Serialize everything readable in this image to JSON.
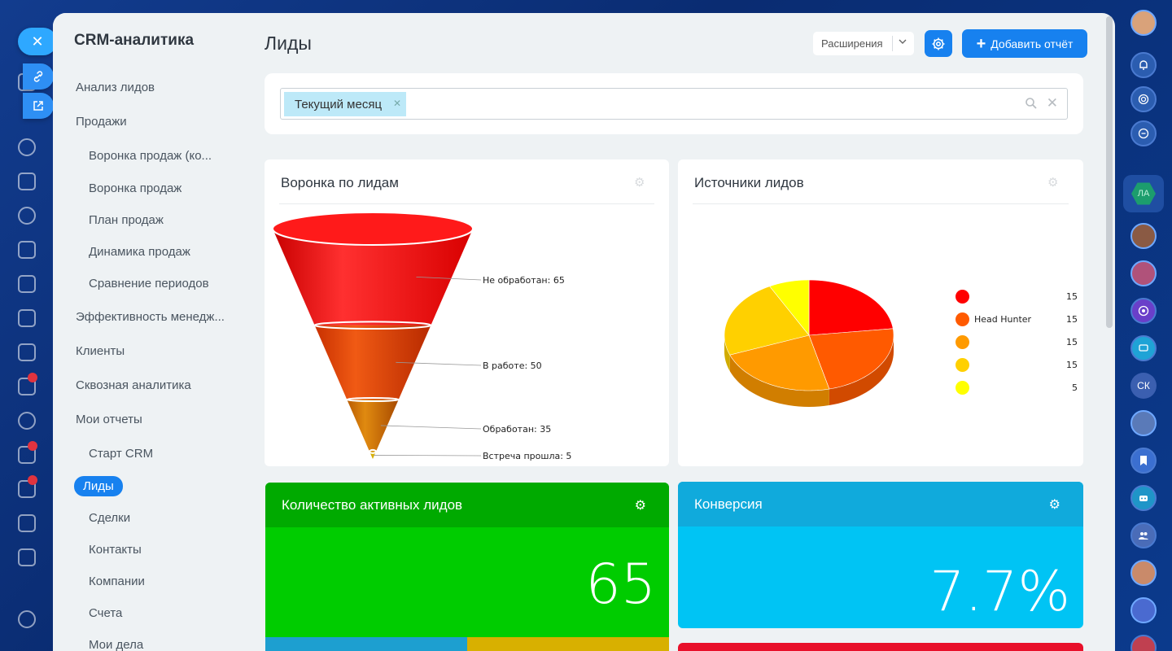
{
  "app": {
    "title": "CRM-аналитика"
  },
  "sidebar": {
    "items": [
      {
        "label": "Анализ лидов",
        "level": 0
      },
      {
        "label": "Продажи",
        "level": 0
      },
      {
        "label": "Воронка продаж (ко...",
        "level": 1
      },
      {
        "label": "Воронка продаж",
        "level": 1
      },
      {
        "label": "План продаж",
        "level": 1
      },
      {
        "label": "Динамика продаж",
        "level": 1
      },
      {
        "label": "Сравнение периодов",
        "level": 1
      },
      {
        "label": "Эффективность менедж...",
        "level": 0
      },
      {
        "label": "Клиенты",
        "level": 0
      },
      {
        "label": "Сквозная аналитика",
        "level": 0
      },
      {
        "label": "Мои отчеты",
        "level": 0
      },
      {
        "label": "Старт CRM",
        "level": 1
      },
      {
        "label": "Лиды",
        "level": 1,
        "active": true
      },
      {
        "label": "Сделки",
        "level": 1
      },
      {
        "label": "Контакты",
        "level": 1
      },
      {
        "label": "Компании",
        "level": 1
      },
      {
        "label": "Счета",
        "level": 1
      },
      {
        "label": "Мои дела",
        "level": 1
      }
    ]
  },
  "header": {
    "title": "Лиды",
    "extensions_label": "Расширения",
    "add_report_label": "Добавить отчёт"
  },
  "filter": {
    "tag": "Текущий месяц"
  },
  "funnel_widget": {
    "title": "Воронка по лидам",
    "labels": [
      "Не обработан: 65",
      "В работе: 50",
      "Обработан: 35",
      "Встреча прошла: 5"
    ]
  },
  "pie_widget": {
    "title": "Источники лидов",
    "legend": [
      {
        "name": "",
        "value": "15",
        "color": "#ff0000"
      },
      {
        "name": "Head Hunter",
        "value": "15",
        "color": "#ff5a00"
      },
      {
        "name": "",
        "value": "15",
        "color": "#ff9a00"
      },
      {
        "name": "",
        "value": "15",
        "color": "#ffd000"
      },
      {
        "name": "",
        "value": "5",
        "color": "#ffff00"
      }
    ]
  },
  "kpi_active_leads": {
    "title": "Количество активных лидов",
    "value": "65",
    "color": "#00cc00"
  },
  "kpi_conversion": {
    "title": "Конверсия",
    "value": "7.7%",
    "color": "#00c4f4"
  },
  "chart_data": [
    {
      "type": "funnel",
      "title": "Воронка по лидам",
      "categories": [
        "Не обработан",
        "В работе",
        "Обработан",
        "Встреча прошла"
      ],
      "values": [
        65,
        50,
        35,
        5
      ]
    },
    {
      "type": "pie",
      "title": "Источники лидов",
      "categories": [
        "",
        "Head Hunter",
        "",
        "",
        ""
      ],
      "values": [
        15,
        15,
        15,
        15,
        5
      ],
      "colors": [
        "#ff0000",
        "#ff5a00",
        "#ff9a00",
        "#ffd000",
        "#ffff00"
      ],
      "legend": "right"
    }
  ],
  "right_rail": {
    "items": [
      "bell-icon",
      "target-icon",
      "chat-sync-icon",
      "ЛА",
      "avatar",
      "avatar",
      "target-icon",
      "chat-icon",
      "СК",
      "avatar",
      "bookmark-icon",
      "robot-icon",
      "group-icon",
      "avatar"
    ]
  }
}
